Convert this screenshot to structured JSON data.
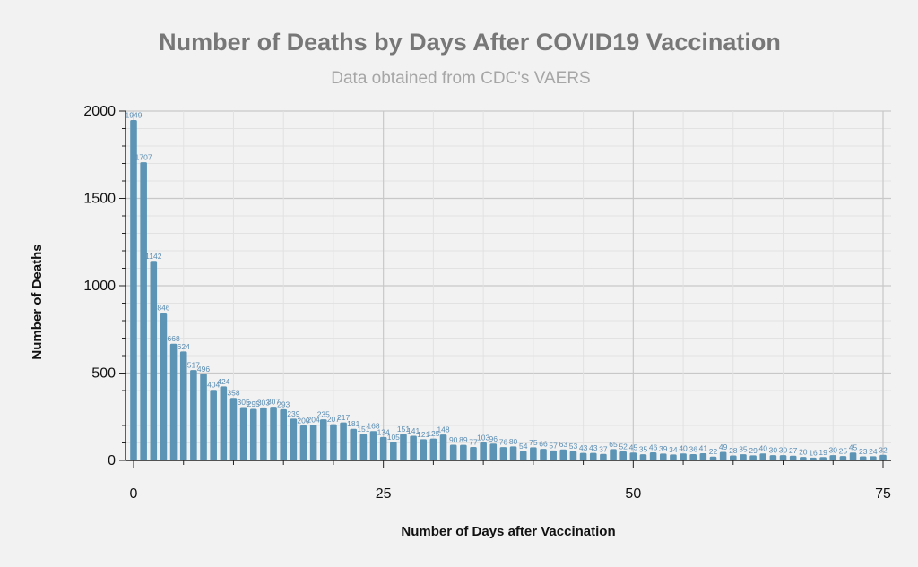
{
  "chart_data": {
    "type": "bar",
    "title": "Number of Deaths by Days After COVID19 Vaccination",
    "subtitle": "Data obtained from CDC's VAERS",
    "xlabel": "Number of Days after Vaccination",
    "ylabel": "Number of Deaths",
    "xlim": [
      -1,
      76
    ],
    "ylim": [
      0,
      2000
    ],
    "x_ticks": [
      0,
      25,
      50,
      75
    ],
    "y_ticks": [
      0,
      500,
      1000,
      1500,
      2000
    ],
    "grid": true,
    "x": [
      0,
      1,
      2,
      3,
      4,
      5,
      6,
      7,
      8,
      9,
      10,
      11,
      12,
      13,
      14,
      15,
      16,
      17,
      18,
      19,
      20,
      21,
      22,
      23,
      24,
      25,
      26,
      27,
      28,
      29,
      30,
      31,
      32,
      33,
      34,
      35,
      36,
      37,
      38,
      39,
      40,
      41,
      42,
      43,
      44,
      45,
      46,
      47,
      48,
      49,
      50,
      51,
      52,
      53,
      54,
      55,
      56,
      57,
      58,
      59,
      60,
      61,
      62,
      63,
      64,
      65,
      66,
      67,
      68,
      69,
      70,
      71,
      72,
      73,
      74,
      75
    ],
    "values": [
      1949,
      1707,
      1142,
      846,
      668,
      624,
      517,
      496,
      404,
      424,
      358,
      305,
      295,
      303,
      307,
      293,
      239,
      200,
      204,
      235,
      207,
      217,
      181,
      151,
      168,
      134,
      105,
      151,
      141,
      121,
      125,
      148,
      90,
      89,
      77,
      103,
      96,
      76,
      80,
      54,
      75,
      66,
      57,
      63,
      53,
      43,
      43,
      37,
      65,
      52,
      45,
      35,
      46,
      39,
      34,
      40,
      36,
      41,
      22,
      49,
      28,
      35,
      29,
      40,
      30,
      30,
      27,
      20,
      16,
      19,
      30,
      25,
      45,
      23,
      24,
      32
    ],
    "data_labels": [
      "1949",
      "1707",
      "1142",
      "846",
      "668",
      "624",
      "517",
      "496",
      "404",
      "424",
      "358",
      "305",
      "295",
      "303",
      "307",
      "293",
      "239",
      "200",
      "204",
      "235",
      "207",
      "217",
      "181",
      "151",
      "168",
      "134",
      "105",
      "151",
      "141",
      "121",
      "125",
      "148",
      "90",
      "89",
      "77",
      "103",
      "96",
      "76",
      "80",
      "54",
      "75",
      "66",
      "57",
      "63",
      "53",
      "43",
      "43",
      "37",
      "65",
      "52",
      "45",
      "35",
      "46",
      "39",
      "34",
      "40",
      "36",
      "41",
      "22",
      "49",
      "28",
      "35",
      "29",
      "40",
      "30",
      "30",
      "27",
      "20",
      "16",
      "19",
      "30",
      "25",
      "45",
      "23",
      "24",
      "32"
    ],
    "bar_color": "#5b94b5",
    "label_color": "#5b8db2"
  }
}
